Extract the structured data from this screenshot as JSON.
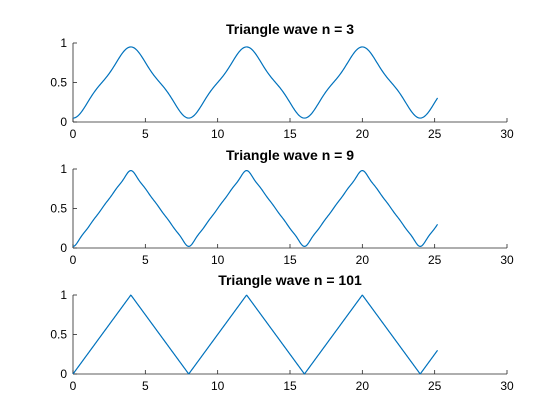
{
  "chart_data": [
    {
      "type": "line",
      "title": "Triangle wave n = 3",
      "harmonics": 3,
      "period": 8,
      "x_range": [
        0,
        25.2
      ],
      "xlim": [
        0,
        30
      ],
      "ylim": [
        0,
        1
      ],
      "xticks": [
        0,
        5,
        10,
        15,
        20,
        25,
        30
      ],
      "xtick_labels": [
        "0",
        "5",
        "10",
        "15",
        "20",
        "25",
        "30"
      ],
      "yticks": [
        0,
        0.5,
        1
      ],
      "ytick_labels": [
        "0",
        "0.5",
        "1"
      ],
      "series": [
        {
          "color": "#0072bd",
          "x": [
            0,
            1,
            2,
            3,
            4,
            5,
            6,
            7,
            8,
            9,
            10,
            11,
            12,
            13,
            14,
            15,
            16,
            17,
            18,
            19,
            20,
            21,
            22,
            23,
            24,
            25
          ],
          "y": [
            0.05,
            0.25,
            0.48,
            0.72,
            0.95,
            0.72,
            0.48,
            0.25,
            0.05,
            0.25,
            0.48,
            0.72,
            0.95,
            0.72,
            0.48,
            0.25,
            0.05,
            0.25,
            0.48,
            0.72,
            0.95,
            0.72,
            0.48,
            0.25,
            0.05,
            0.26
          ]
        }
      ]
    },
    {
      "type": "line",
      "title": "Triangle wave n = 9",
      "harmonics": 9,
      "period": 8,
      "x_range": [
        0,
        25.2
      ],
      "xlim": [
        0,
        30
      ],
      "ylim": [
        0,
        1
      ],
      "xticks": [
        0,
        5,
        10,
        15,
        20,
        25,
        30
      ],
      "xtick_labels": [
        "0",
        "5",
        "10",
        "15",
        "20",
        "25",
        "30"
      ],
      "yticks": [
        0,
        0.5,
        1
      ],
      "ytick_labels": [
        "0",
        "0.5",
        "1"
      ],
      "series": [
        {
          "color": "#0072bd",
          "x": [
            0,
            1,
            2,
            3,
            4,
            5,
            6,
            7,
            8,
            9,
            10,
            11,
            12,
            13,
            14,
            15,
            16,
            17,
            18,
            19,
            20,
            21,
            22,
            23,
            24,
            25
          ],
          "y": [
            0.02,
            0.25,
            0.5,
            0.75,
            0.98,
            0.75,
            0.5,
            0.25,
            0.02,
            0.25,
            0.5,
            0.75,
            0.98,
            0.75,
            0.5,
            0.25,
            0.02,
            0.25,
            0.5,
            0.75,
            0.98,
            0.75,
            0.5,
            0.25,
            0.02,
            0.25
          ]
        }
      ]
    },
    {
      "type": "line",
      "title": "Triangle wave n = 101",
      "harmonics": 101,
      "period": 8,
      "x_range": [
        0,
        25.2
      ],
      "xlim": [
        0,
        30
      ],
      "ylim": [
        0,
        1
      ],
      "xticks": [
        0,
        5,
        10,
        15,
        20,
        25,
        30
      ],
      "xtick_labels": [
        "0",
        "5",
        "10",
        "15",
        "20",
        "25",
        "30"
      ],
      "yticks": [
        0,
        0.5,
        1
      ],
      "ytick_labels": [
        "0",
        "0.5",
        "1"
      ],
      "series": [
        {
          "color": "#0072bd",
          "x": [
            0,
            1,
            2,
            3,
            4,
            5,
            6,
            7,
            8,
            9,
            10,
            11,
            12,
            13,
            14,
            15,
            16,
            17,
            18,
            19,
            20,
            21,
            22,
            23,
            24,
            25
          ],
          "y": [
            0,
            0.25,
            0.5,
            0.75,
            1,
            0.75,
            0.5,
            0.25,
            0,
            0.25,
            0.5,
            0.75,
            1,
            0.75,
            0.5,
            0.25,
            0,
            0.25,
            0.5,
            0.75,
            1,
            0.75,
            0.5,
            0.25,
            0,
            0.25
          ]
        }
      ]
    }
  ]
}
